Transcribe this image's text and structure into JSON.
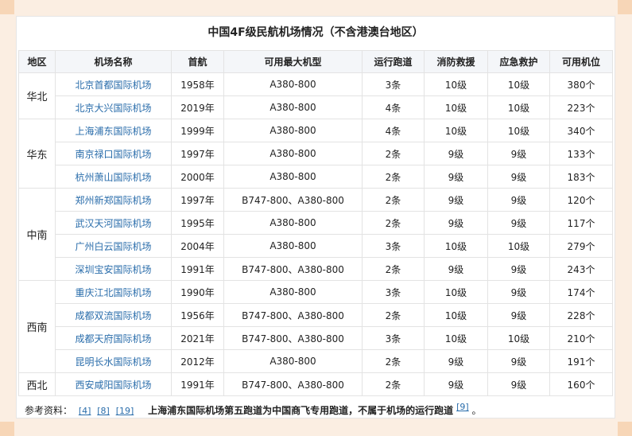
{
  "title": "中国4F级民航机场情况（不含港澳台地区）",
  "headers": [
    "地区",
    "机场名称",
    "首航",
    "可用最大机型",
    "运行跑道",
    "消防救援",
    "应急救护",
    "可用机位"
  ],
  "groups": [
    {
      "region": "华北",
      "rows": [
        {
          "name": "北京首都国际机场",
          "year": "1958年",
          "aircraft": "A380-800",
          "runways": "3条",
          "fire": "10级",
          "emergency": "10级",
          "stands": "380个"
        },
        {
          "name": "北京大兴国际机场",
          "year": "2019年",
          "aircraft": "A380-800",
          "runways": "4条",
          "fire": "10级",
          "emergency": "10级",
          "stands": "223个"
        }
      ]
    },
    {
      "region": "华东",
      "rows": [
        {
          "name": "上海浦东国际机场",
          "year": "1999年",
          "aircraft": "A380-800",
          "runways": "4条",
          "fire": "10级",
          "emergency": "10级",
          "stands": "340个"
        },
        {
          "name": "南京禄口国际机场",
          "year": "1997年",
          "aircraft": "A380-800",
          "runways": "2条",
          "fire": "9级",
          "emergency": "9级",
          "stands": "133个"
        },
        {
          "name": "杭州萧山国际机场",
          "year": "2000年",
          "aircraft": "A380-800",
          "runways": "2条",
          "fire": "9级",
          "emergency": "9级",
          "stands": "183个"
        }
      ]
    },
    {
      "region": "中南",
      "rows": [
        {
          "name": "郑州新郑国际机场",
          "year": "1997年",
          "aircraft": "B747-800、A380-800",
          "runways": "2条",
          "fire": "9级",
          "emergency": "9级",
          "stands": "120个"
        },
        {
          "name": "武汉天河国际机场",
          "year": "1995年",
          "aircraft": "A380-800",
          "runways": "2条",
          "fire": "9级",
          "emergency": "9级",
          "stands": "117个"
        },
        {
          "name": "广州白云国际机场",
          "year": "2004年",
          "aircraft": "A380-800",
          "runways": "3条",
          "fire": "10级",
          "emergency": "10级",
          "stands": "279个"
        },
        {
          "name": "深圳宝安国际机场",
          "year": "1991年",
          "aircraft": "B747-800、A380-800",
          "runways": "2条",
          "fire": "9级",
          "emergency": "9级",
          "stands": "243个"
        }
      ]
    },
    {
      "region": "西南",
      "rows": [
        {
          "name": "重庆江北国际机场",
          "year": "1990年",
          "aircraft": "A380-800",
          "runways": "3条",
          "fire": "10级",
          "emergency": "9级",
          "stands": "174个"
        },
        {
          "name": "成都双流国际机场",
          "year": "1956年",
          "aircraft": "B747-800、A380-800",
          "runways": "2条",
          "fire": "10级",
          "emergency": "9级",
          "stands": "228个"
        },
        {
          "name": "成都天府国际机场",
          "year": "2021年",
          "aircraft": "B747-800、A380-800",
          "runways": "3条",
          "fire": "10级",
          "emergency": "10级",
          "stands": "210个"
        },
        {
          "name": "昆明长水国际机场",
          "year": "2012年",
          "aircraft": "A380-800",
          "runways": "2条",
          "fire": "9级",
          "emergency": "9级",
          "stands": "191个"
        }
      ]
    },
    {
      "region": "西北",
      "rows": [
        {
          "name": "西安咸阳国际机场",
          "year": "1991年",
          "aircraft": "B747-800、A380-800",
          "runways": "2条",
          "fire": "9级",
          "emergency": "9级",
          "stands": "160个"
        }
      ]
    }
  ],
  "footer": {
    "label": "参考资料：",
    "refs": [
      "[4]",
      "[8]",
      "[19]"
    ],
    "note": "上海浦东国际机场第五跑道为中国商飞专用跑道，不属于机场的运行跑道",
    "note_ref": "[9]",
    "tail": "。"
  },
  "colors": {
    "link": "#2a6dab",
    "header_bg": "#f4f6f9",
    "frame_bg": "#fbeee2"
  }
}
